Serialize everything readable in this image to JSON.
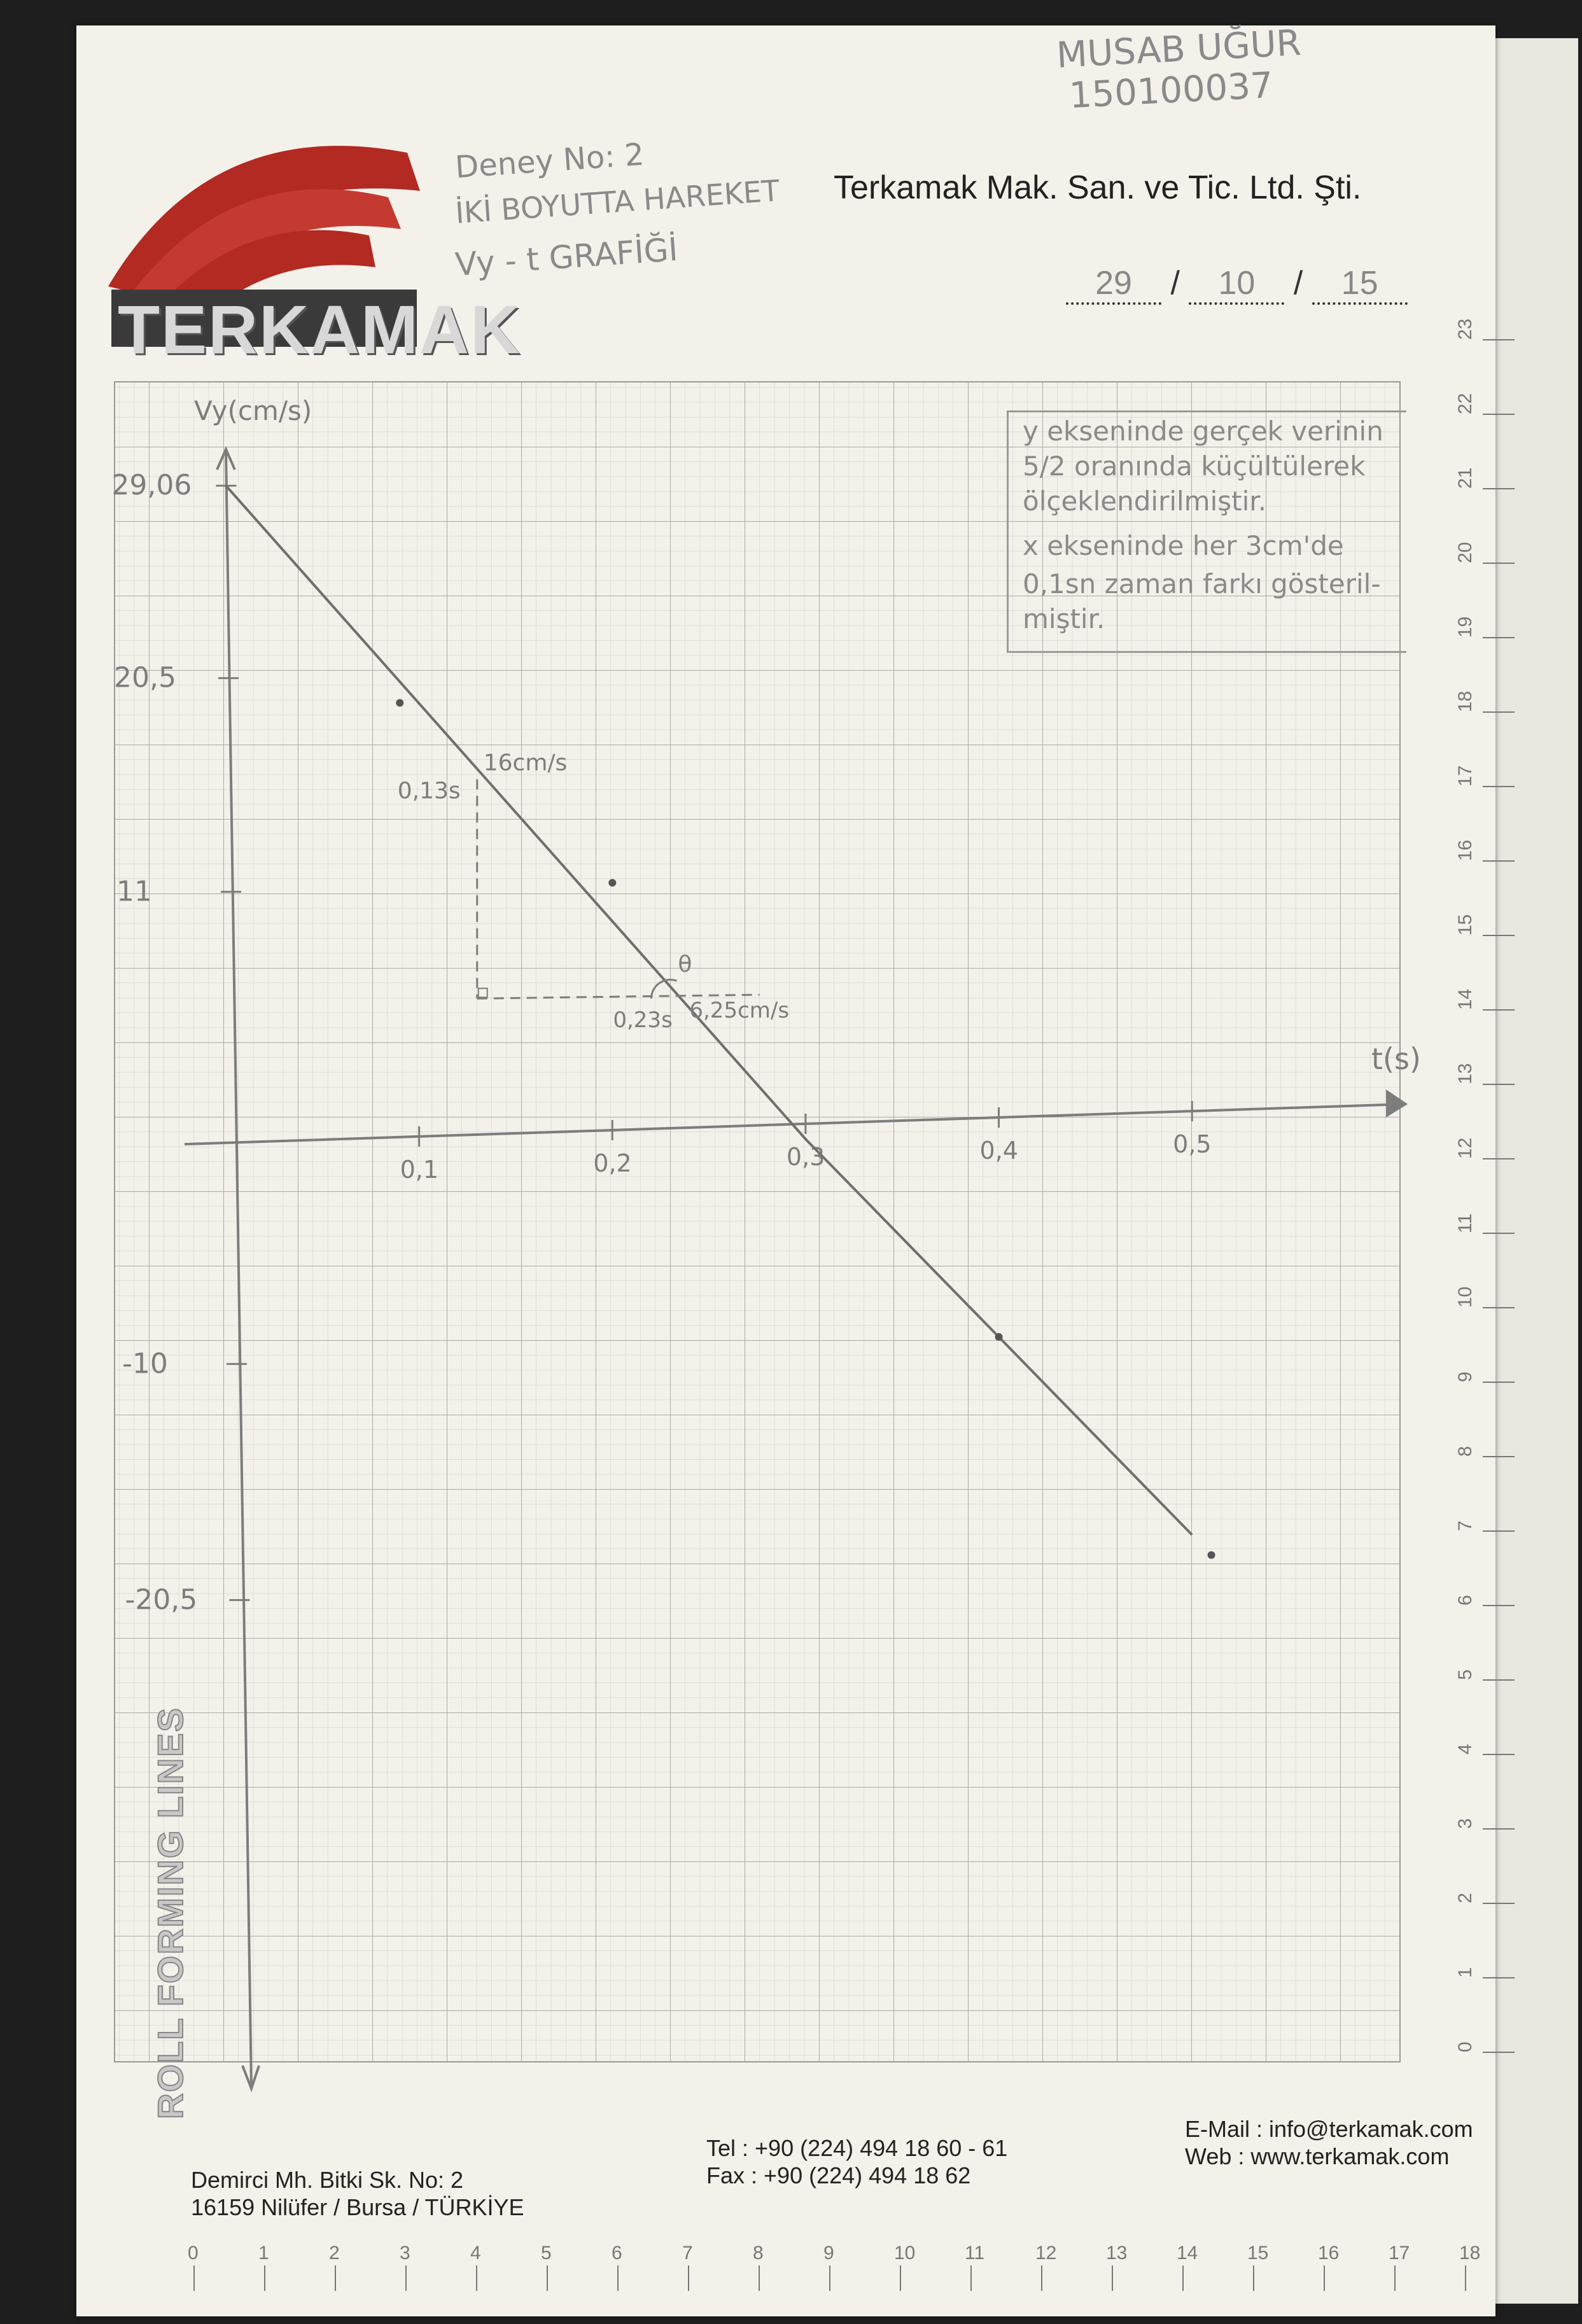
{
  "header": {
    "student_name": "MUSAB UĞUR",
    "student_number": "150100037",
    "experiment_no": "Deney No: 2",
    "experiment_title": "İKİ BOYUTTA HAREKET",
    "graph_title": "Vy - t GRAFİĞİ",
    "company": "Terkamak Mak. San. ve Tic. Ltd. Şti.",
    "date_day": "29",
    "date_month": "10",
    "date_year": "15",
    "logo": "TERKAMAK",
    "side_label": "ROLL FORMING LINES"
  },
  "note": {
    "lines": [
      "y ekseninde gerçek verinin",
      "5/2 oranında küçültülerek",
      "ölçeklendirilmiştir.",
      "x ekseninde her 3cm'de",
      "0,1sn zaman farkı gösteril-",
      "miştir."
    ]
  },
  "footer": {
    "address_line1": "Demirci Mh. Bitki Sk. No: 2",
    "address_line2": "16159 Nilüfer / Bursa / TÜRKİYE",
    "tel": "Tel  : +90 (224) 494 18 60 - 61",
    "fax": "Fax : +90 (224) 494 18 62",
    "email": "E-Mail : info@terkamak.com",
    "web": "Web    : www.terkamak.com"
  },
  "ruler": {
    "right": [
      "0",
      "1",
      "2",
      "3",
      "4",
      "5",
      "6",
      "7",
      "8",
      "9",
      "10",
      "11",
      "12",
      "13",
      "14",
      "15",
      "16",
      "17",
      "18",
      "19",
      "20",
      "21",
      "22",
      "23"
    ],
    "bottom": [
      "0",
      "1",
      "2",
      "3",
      "4",
      "5",
      "6",
      "7",
      "8",
      "9",
      "10",
      "11",
      "12",
      "13",
      "14",
      "15",
      "16",
      "17",
      "18"
    ]
  },
  "chart_data": {
    "type": "line",
    "xlabel": "t(s)",
    "ylabel": "Vy(cm/s)",
    "x_ticks": [
      "0,1",
      "0,2",
      "0,3",
      "0,4",
      "0,5"
    ],
    "y_ticks": [
      "29,06",
      "20,5",
      "11",
      "-10",
      "-20,5"
    ],
    "x_tick_values": [
      0.1,
      0.2,
      0.3,
      0.4,
      0.5
    ],
    "y_tick_values": [
      29.06,
      20.5,
      11,
      -10,
      -20.5
    ],
    "xlim": [
      0,
      0.55
    ],
    "ylim": [
      -30,
      30
    ],
    "series": [
      {
        "values": [
          [
            0,
            29.06
          ],
          [
            0.3,
            0
          ],
          [
            0.5,
            -17.6
          ]
        ]
      }
    ],
    "points": [
      [
        0.09,
        19.4
      ],
      [
        0.2,
        11.4
      ],
      [
        0.4,
        -8.8
      ],
      [
        0.51,
        -18.5
      ]
    ],
    "annotations": [
      {
        "text": "0,13s",
        "x": 0.13,
        "y": 16
      },
      {
        "text": "16cm/s",
        "x": 0.13,
        "y": 16
      },
      {
        "text": "0,23s",
        "x": 0.23,
        "y": 6.25
      },
      {
        "text": "6,25cm/s",
        "x": 0.23,
        "y": 6.25
      },
      {
        "text": "θ",
        "x": 0.23,
        "y": 6.25
      }
    ]
  }
}
